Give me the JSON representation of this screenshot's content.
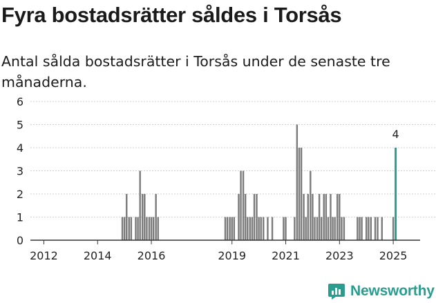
{
  "title": "Fyra bostadsrätter såldes i Torsås",
  "subtitle": "Antal sålda bostadsrätter i Torsås under de senaste tre månaderna.",
  "logo_text": "Newsworthy",
  "colors": {
    "bar": "#7a7a7a",
    "highlight": "#2a9d8f",
    "axis": "#333333",
    "grid": "#cfcfcf",
    "text": "#222222"
  },
  "chart_data": {
    "type": "bar",
    "title": "Fyra bostadsrätter såldes i Torsås",
    "subtitle": "Antal sålda bostadsrätter i Torsås under de senaste tre månaderna.",
    "xlabel": "",
    "ylabel": "",
    "ylim": [
      0,
      6
    ],
    "yticks": [
      0,
      1,
      2,
      3,
      4,
      5,
      6
    ],
    "xlim": [
      2011.5,
      2026.0
    ],
    "xticks": [
      "2012",
      "2014",
      "2016",
      "2019",
      "2021",
      "2023",
      "2025"
    ],
    "xtick_values": [
      2012,
      2014,
      2016,
      2019,
      2021,
      2023,
      2025
    ],
    "grid": true,
    "highlight": {
      "x": 2025.09,
      "value": 4,
      "label": "4"
    },
    "series": [
      {
        "x": [
          2014.92,
          2015.0,
          2015.08,
          2015.17,
          2015.25,
          2015.42,
          2015.5,
          2015.58,
          2015.67,
          2015.75,
          2015.83,
          2015.92,
          2016.0,
          2016.08,
          2016.17,
          2016.25,
          2018.75,
          2018.83,
          2018.92,
          2019.0,
          2019.08,
          2019.25,
          2019.33,
          2019.42,
          2019.5,
          2019.58,
          2019.67,
          2019.75,
          2019.83,
          2019.92,
          2020.0,
          2020.08,
          2020.17,
          2020.33,
          2020.5,
          2020.92,
          2021.0,
          2021.33,
          2021.42,
          2021.5,
          2021.58,
          2021.67,
          2021.75,
          2021.83,
          2021.92,
          2022.0,
          2022.08,
          2022.17,
          2022.25,
          2022.33,
          2022.42,
          2022.5,
          2022.58,
          2022.67,
          2022.75,
          2022.83,
          2022.92,
          2023.0,
          2023.08,
          2023.17,
          2023.67,
          2023.75,
          2023.83,
          2024.0,
          2024.08,
          2024.17,
          2024.33,
          2024.42,
          2024.58,
          2025.0
        ],
        "values": [
          1,
          1,
          2,
          1,
          1,
          1,
          1,
          3,
          2,
          2,
          1,
          1,
          1,
          1,
          2,
          1,
          1,
          1,
          1,
          1,
          1,
          2,
          3,
          3,
          2,
          1,
          1,
          1,
          2,
          2,
          1,
          1,
          1,
          1,
          1,
          1,
          1,
          1,
          5,
          4,
          4,
          2,
          1,
          2,
          3,
          2,
          1,
          1,
          2,
          1,
          2,
          2,
          1,
          2,
          1,
          1,
          2,
          2,
          1,
          1,
          1,
          1,
          1,
          1,
          1,
          1,
          1,
          1,
          1,
          1
        ]
      }
    ]
  }
}
